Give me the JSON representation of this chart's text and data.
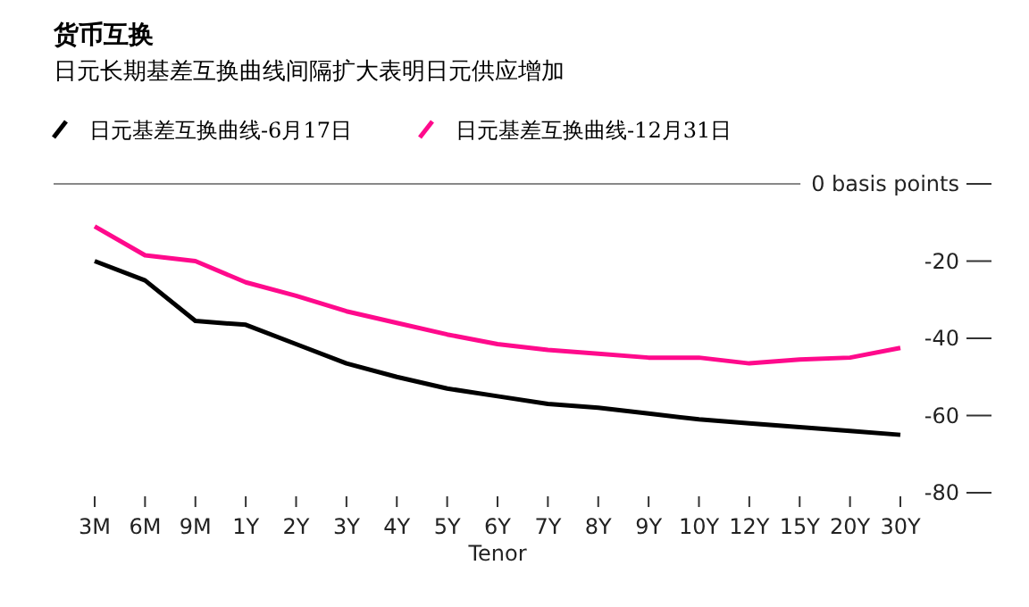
{
  "chart_data": {
    "type": "line",
    "title": "货币互换",
    "subtitle": "日元长期基差互换曲线间隔扩大表明日元供应增加",
    "xlabel": "Tenor",
    "categories": [
      "3M",
      "6M",
      "9M",
      "1Y",
      "2Y",
      "3Y",
      "4Y",
      "5Y",
      "6Y",
      "7Y",
      "8Y",
      "9Y",
      "10Y",
      "12Y",
      "15Y",
      "20Y",
      "30Y"
    ],
    "series": [
      {
        "name": "日元基差互换曲线-6月17日",
        "color": "#000000",
        "values": [
          -20,
          -25,
          -35.5,
          -36.5,
          -41.5,
          -46.5,
          -50,
          -53,
          -55,
          -57,
          -58,
          -59.5,
          -61,
          -62,
          -63,
          -64,
          -65
        ]
      },
      {
        "name": "日元基差互换曲线-12月31日",
        "color": "#ff0a8c",
        "values": [
          -11,
          -18.5,
          -20,
          -25.5,
          -29,
          -33,
          -36,
          -39,
          -41.5,
          -43,
          -44,
          -45,
          -45,
          -46.5,
          -45.5,
          -45,
          -42.5
        ]
      }
    ],
    "ylim": [
      -80,
      0
    ],
    "yticks": [
      {
        "value": 0,
        "label": "0 basis points"
      },
      -20,
      -40,
      -60,
      -80
    ],
    "ref_lines": [
      {
        "axis": "y",
        "value": 0,
        "color": "#888888"
      }
    ],
    "legend": "top left",
    "grid": false,
    "marker": "none",
    "line_style": "solid"
  }
}
